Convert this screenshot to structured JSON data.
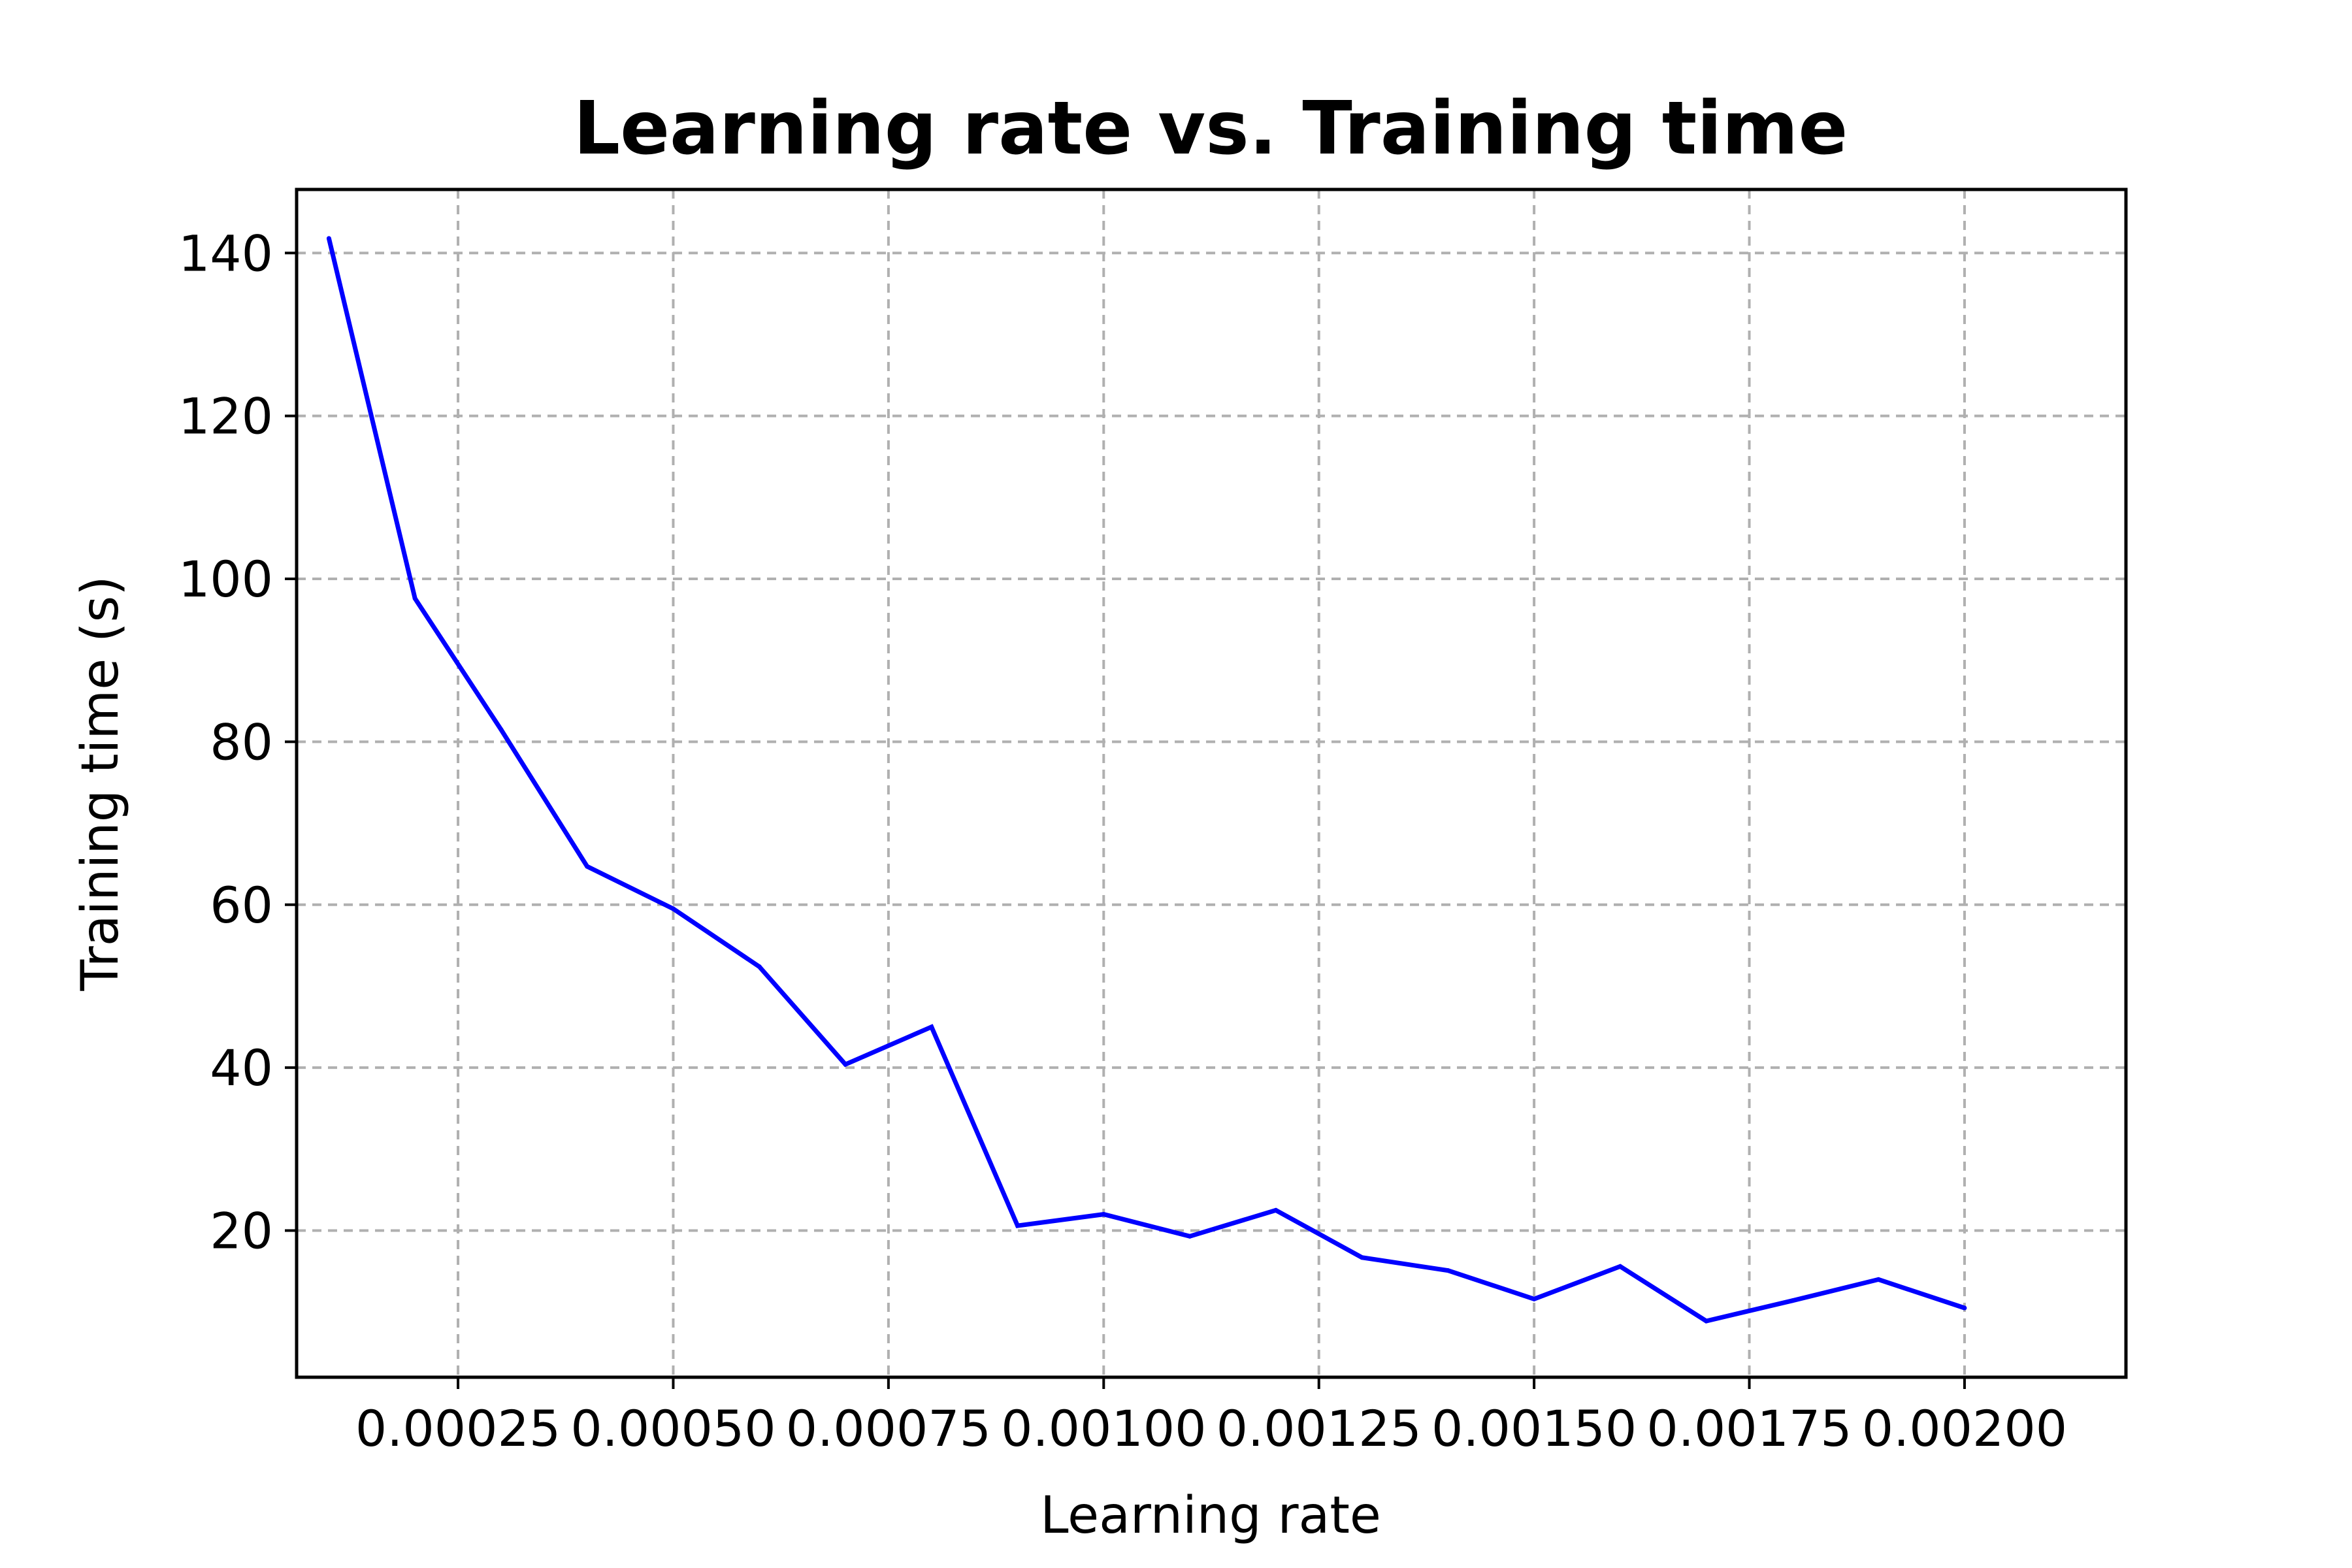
{
  "chart_data": {
    "type": "line",
    "title": "Learning rate vs. Training time",
    "xlabel": "Learning rate",
    "ylabel": "Training time (s)",
    "xlim": [
      6.25e-05,
      0.0021875
    ],
    "ylim": [
      2.0,
      147.8
    ],
    "xticks": [
      {
        "value": 0.00025,
        "label": "0.00025"
      },
      {
        "value": 0.0005,
        "label": "0.00050"
      },
      {
        "value": 0.00075,
        "label": "0.00075"
      },
      {
        "value": 0.001,
        "label": "0.00100"
      },
      {
        "value": 0.00125,
        "label": "0.00125"
      },
      {
        "value": 0.0015,
        "label": "0.00150"
      },
      {
        "value": 0.00175,
        "label": "0.00175"
      },
      {
        "value": 0.002,
        "label": "0.00200"
      }
    ],
    "yticks": [
      {
        "value": 20,
        "label": "20"
      },
      {
        "value": 40,
        "label": "40"
      },
      {
        "value": 60,
        "label": "60"
      },
      {
        "value": 80,
        "label": "80"
      },
      {
        "value": 100,
        "label": "100"
      },
      {
        "value": 120,
        "label": "120"
      },
      {
        "value": 140,
        "label": "140"
      }
    ],
    "grid": true,
    "series": [
      {
        "color": "#0000ff",
        "x": [
          0.0001,
          0.0002,
          0.0003,
          0.0004,
          0.0005,
          0.0006,
          0.0007,
          0.0008,
          0.0009,
          0.001,
          0.0011,
          0.0012,
          0.0013,
          0.0014,
          0.0015,
          0.0016,
          0.0017,
          0.0018,
          0.0019,
          0.002
        ],
        "y": [
          141.8,
          97.6,
          81.5,
          64.7,
          59.5,
          52.4,
          40.4,
          45.0,
          20.6,
          22.0,
          19.3,
          22.5,
          16.7,
          15.1,
          11.6,
          15.6,
          8.9,
          11.4,
          14.0,
          10.5
        ]
      }
    ]
  }
}
